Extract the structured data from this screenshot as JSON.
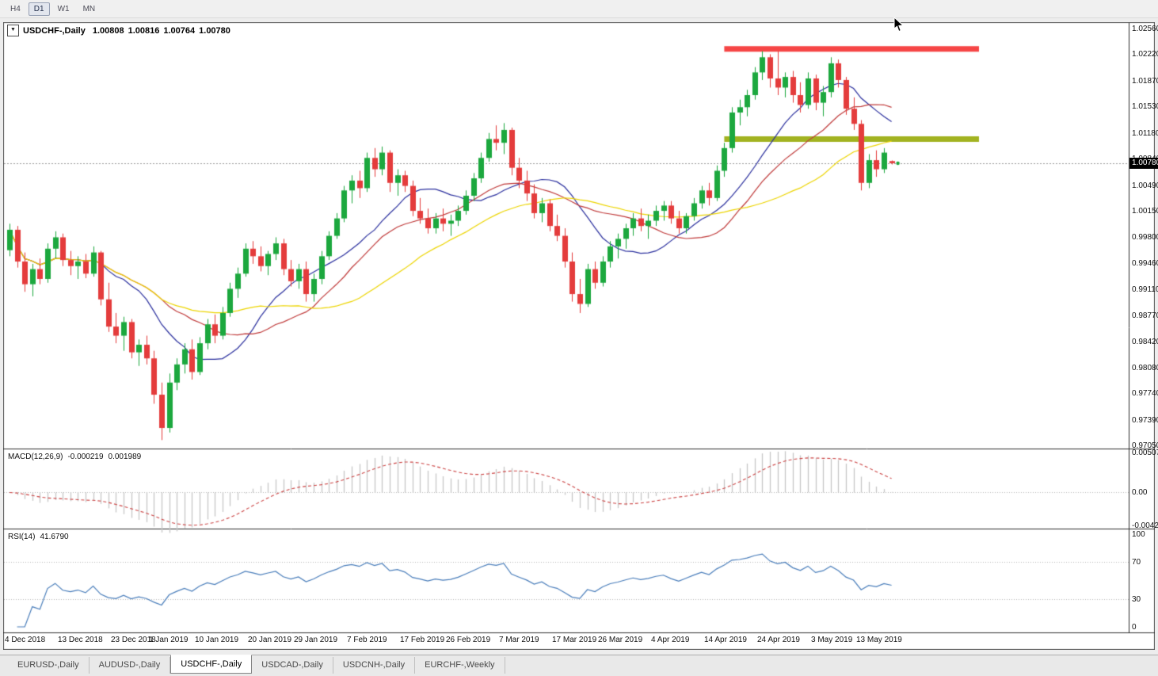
{
  "toolbar": {
    "timeframes": [
      {
        "label": "H4",
        "active": false
      },
      {
        "label": "D1",
        "active": true
      },
      {
        "label": "W1",
        "active": false
      },
      {
        "label": "MN",
        "active": false
      }
    ]
  },
  "icons": {
    "collapse": "▼"
  },
  "chart": {
    "symbol_label": "USDCHF-,Daily",
    "ohlc": {
      "open": "1.00808",
      "high": "1.00816",
      "low": "1.00764",
      "close": "1.00780"
    },
    "current_price": "1.00780",
    "price_scale": [
      "1.02560",
      "1.02220",
      "1.01870",
      "1.01530",
      "1.01180",
      "1.00840",
      "1.00490",
      "1.00150",
      "0.99800",
      "0.99460",
      "0.99110",
      "0.98770",
      "0.98420",
      "0.98080",
      "0.97740",
      "0.97390",
      "0.97050"
    ]
  },
  "indicators": {
    "macd": {
      "name": "MACD(12,26,9)",
      "value": "-0.000219",
      "signal_value": "0.001989",
      "scale": [
        "0.00507",
        "0.00",
        "-0.00424"
      ]
    },
    "rsi": {
      "name": "RSI(14)",
      "value": "41.6790",
      "scale": [
        "100",
        "70",
        "30",
        "0"
      ]
    }
  },
  "time_axis": {
    "labels": [
      {
        "text": "4 Dec 2018",
        "bar": 0
      },
      {
        "text": "13 Dec 2018",
        "bar": 7
      },
      {
        "text": "23 Dec 2018",
        "bar": 14
      },
      {
        "text": "1 Jan 2019",
        "bar": 19
      },
      {
        "text": "10 Jan 2019",
        "bar": 25
      },
      {
        "text": "20 Jan 2019",
        "bar": 32
      },
      {
        "text": "29 Jan 2019",
        "bar": 38
      },
      {
        "text": "7 Feb 2019",
        "bar": 45
      },
      {
        "text": "17 Feb 2019",
        "bar": 52
      },
      {
        "text": "26 Feb 2019",
        "bar": 58
      },
      {
        "text": "7 Mar 2019",
        "bar": 65
      },
      {
        "text": "17 Mar 2019",
        "bar": 72
      },
      {
        "text": "26 Mar 2019",
        "bar": 78
      },
      {
        "text": "4 Apr 2019",
        "bar": 85
      },
      {
        "text": "14 Apr 2019",
        "bar": 92
      },
      {
        "text": "24 Apr 2019",
        "bar": 99
      },
      {
        "text": "3 May 2019",
        "bar": 106
      },
      {
        "text": "13 May 2019",
        "bar": 112
      }
    ]
  },
  "tabs": [
    {
      "label": "EURUSD-,Daily",
      "active": false
    },
    {
      "label": "AUDUSD-,Daily",
      "active": false
    },
    {
      "label": "USDCHF-,Daily",
      "active": true
    },
    {
      "label": "USDCAD-,Daily",
      "active": false
    },
    {
      "label": "USDCNH-,Daily",
      "active": false
    },
    {
      "label": "EURCHF-,Weekly",
      "active": false
    }
  ],
  "chart_data": {
    "type": "candlestick",
    "symbol": "USDCHF-",
    "timeframe": "Daily",
    "title": "USDCHF-,Daily",
    "y_range": {
      "top": 1.02644,
      "bottom": 0.97008
    },
    "colors": {
      "up": "#1ca83e",
      "down": "#e43c3c"
    },
    "dates": [
      "2018-12-04",
      "2018-12-05",
      "2018-12-06",
      "2018-12-07",
      "2018-12-10",
      "2018-12-11",
      "2018-12-12",
      "2018-12-13",
      "2018-12-14",
      "2018-12-17",
      "2018-12-18",
      "2018-12-19",
      "2018-12-20",
      "2018-12-21",
      "2018-12-24",
      "2018-12-26",
      "2018-12-27",
      "2018-12-28",
      "2018-12-31",
      "2019-01-02",
      "2019-01-03",
      "2019-01-04",
      "2019-01-07",
      "2019-01-08",
      "2019-01-09",
      "2019-01-10",
      "2019-01-11",
      "2019-01-14",
      "2019-01-15",
      "2019-01-16",
      "2019-01-17",
      "2019-01-18",
      "2019-01-21",
      "2019-01-22",
      "2019-01-23",
      "2019-01-24",
      "2019-01-25",
      "2019-01-28",
      "2019-01-29",
      "2019-01-30",
      "2019-01-31",
      "2019-02-01",
      "2019-02-04",
      "2019-02-05",
      "2019-02-06",
      "2019-02-07",
      "2019-02-08",
      "2019-02-11",
      "2019-02-12",
      "2019-02-13",
      "2019-02-14",
      "2019-02-15",
      "2019-02-18",
      "2019-02-19",
      "2019-02-20",
      "2019-02-21",
      "2019-02-22",
      "2019-02-25",
      "2019-02-26",
      "2019-02-27",
      "2019-02-28",
      "2019-03-01",
      "2019-03-04",
      "2019-03-05",
      "2019-03-06",
      "2019-03-07",
      "2019-03-08",
      "2019-03-11",
      "2019-03-12",
      "2019-03-13",
      "2019-03-14",
      "2019-03-15",
      "2019-03-18",
      "2019-03-19",
      "2019-03-20",
      "2019-03-21",
      "2019-03-22",
      "2019-03-25",
      "2019-03-26",
      "2019-03-27",
      "2019-03-28",
      "2019-03-29",
      "2019-04-01",
      "2019-04-02",
      "2019-04-03",
      "2019-04-04",
      "2019-04-05",
      "2019-04-08",
      "2019-04-09",
      "2019-04-10",
      "2019-04-11",
      "2019-04-12",
      "2019-04-15",
      "2019-04-16",
      "2019-04-17",
      "2019-04-18",
      "2019-04-19",
      "2019-04-22",
      "2019-04-23",
      "2019-04-24",
      "2019-04-25",
      "2019-04-26",
      "2019-04-29",
      "2019-04-30",
      "2019-05-01",
      "2019-05-02",
      "2019-05-03",
      "2019-05-06",
      "2019-05-07",
      "2019-05-08",
      "2019-05-09",
      "2019-05-10",
      "2019-05-13",
      "2019-05-14",
      "2019-05-15",
      "2019-05-16",
      "2019-05-17"
    ],
    "ohlc": [
      [
        0.9963,
        0.9998,
        0.9955,
        0.999
      ],
      [
        0.999,
        0.9995,
        0.994,
        0.9948
      ],
      [
        0.9948,
        0.996,
        0.9908,
        0.9918
      ],
      [
        0.9918,
        0.9945,
        0.9902,
        0.9938
      ],
      [
        0.9938,
        0.9952,
        0.9918,
        0.9925
      ],
      [
        0.9925,
        0.9972,
        0.992,
        0.9965
      ],
      [
        0.9965,
        0.9988,
        0.9952,
        0.998
      ],
      [
        0.998,
        0.9985,
        0.9942,
        0.995
      ],
      [
        0.995,
        0.9962,
        0.993,
        0.9942
      ],
      [
        0.9942,
        0.9955,
        0.9925,
        0.9948
      ],
      [
        0.9948,
        0.9958,
        0.9926,
        0.9932
      ],
      [
        0.9932,
        0.9968,
        0.9928,
        0.996
      ],
      [
        0.996,
        0.9962,
        0.989,
        0.9898
      ],
      [
        0.9898,
        0.992,
        0.9855,
        0.9862
      ],
      [
        0.9862,
        0.988,
        0.984,
        0.985
      ],
      [
        0.985,
        0.9875,
        0.983,
        0.9868
      ],
      [
        0.9868,
        0.9872,
        0.982,
        0.9828
      ],
      [
        0.9828,
        0.9845,
        0.981,
        0.9838
      ],
      [
        0.9838,
        0.985,
        0.9812,
        0.982
      ],
      [
        0.982,
        0.983,
        0.976,
        0.9772
      ],
      [
        0.9772,
        0.9788,
        0.9712,
        0.9728
      ],
      [
        0.9728,
        0.98,
        0.9722,
        0.9788
      ],
      [
        0.9788,
        0.982,
        0.9778,
        0.9812
      ],
      [
        0.9812,
        0.984,
        0.98,
        0.9832
      ],
      [
        0.9832,
        0.9845,
        0.9792,
        0.9802
      ],
      [
        0.9802,
        0.9848,
        0.9798,
        0.984
      ],
      [
        0.984,
        0.9872,
        0.9832,
        0.9865
      ],
      [
        0.9865,
        0.9878,
        0.984,
        0.985
      ],
      [
        0.985,
        0.9888,
        0.9845,
        0.988
      ],
      [
        0.988,
        0.992,
        0.9875,
        0.9912
      ],
      [
        0.9912,
        0.994,
        0.99,
        0.9932
      ],
      [
        0.9932,
        0.9972,
        0.9928,
        0.9965
      ],
      [
        0.9965,
        0.9975,
        0.9945,
        0.9955
      ],
      [
        0.9955,
        0.9968,
        0.9935,
        0.9942
      ],
      [
        0.9942,
        0.9962,
        0.993,
        0.9958
      ],
      [
        0.9958,
        0.998,
        0.995,
        0.9972
      ],
      [
        0.9972,
        0.9978,
        0.993,
        0.9938
      ],
      [
        0.9938,
        0.995,
        0.9915,
        0.9922
      ],
      [
        0.9922,
        0.9945,
        0.9912,
        0.9938
      ],
      [
        0.9938,
        0.9948,
        0.9895,
        0.9905
      ],
      [
        0.9905,
        0.9932,
        0.9895,
        0.9925
      ],
      [
        0.9925,
        0.9962,
        0.9918,
        0.9955
      ],
      [
        0.9955,
        0.9988,
        0.995,
        0.9982
      ],
      [
        0.9982,
        1.0012,
        0.9978,
        1.0005
      ],
      [
        1.0005,
        1.0048,
        1.0,
        1.0042
      ],
      [
        1.0042,
        1.0062,
        1.0025,
        1.0055
      ],
      [
        1.0055,
        1.0068,
        1.0032,
        1.0045
      ],
      [
        1.0045,
        1.0092,
        1.004,
        1.0085
      ],
      [
        1.0085,
        1.0098,
        1.006,
        1.007
      ],
      [
        1.007,
        1.01,
        1.0062,
        1.0092
      ],
      [
        1.0092,
        1.0095,
        1.004,
        1.0052
      ],
      [
        1.0052,
        1.007,
        1.0035,
        1.0062
      ],
      [
        1.0062,
        1.0068,
        1.004,
        1.0048
      ],
      [
        1.0048,
        1.0055,
        1.0008,
        1.0015
      ],
      [
        1.0015,
        1.0032,
        0.9998,
        1.0005
      ],
      [
        1.0005,
        1.0018,
        0.9985,
        0.9992
      ],
      [
        0.9992,
        1.0012,
        0.9985,
        1.0005
      ],
      [
        1.0005,
        1.0018,
        0.9988,
        0.9998
      ],
      [
        0.9998,
        1.001,
        0.9982,
        1.0002
      ],
      [
        1.0002,
        1.0022,
        0.9995,
        1.0015
      ],
      [
        1.0015,
        1.0042,
        1.001,
        1.0035
      ],
      [
        1.0035,
        1.0065,
        1.0028,
        1.0058
      ],
      [
        1.0058,
        1.0092,
        1.0052,
        1.0085
      ],
      [
        1.0085,
        1.0118,
        1.008,
        1.011
      ],
      [
        1.011,
        1.0128,
        1.0095,
        1.0105
      ],
      [
        1.0105,
        1.0131,
        1.009,
        1.0122
      ],
      [
        1.0122,
        1.0125,
        1.0062,
        1.0072
      ],
      [
        1.0072,
        1.0085,
        1.0045,
        1.0055
      ],
      [
        1.0055,
        1.0068,
        1.0028,
        1.0038
      ],
      [
        1.0038,
        1.005,
        1.0005,
        1.0012
      ],
      [
        1.0012,
        1.0032,
        1.0,
        1.0025
      ],
      [
        1.0025,
        1.003,
        0.9988,
        0.9995
      ],
      [
        0.9995,
        1.001,
        0.9975,
        0.9982
      ],
      [
        0.9982,
        0.9992,
        0.994,
        0.9948
      ],
      [
        0.9948,
        0.996,
        0.9895,
        0.9905
      ],
      [
        0.9905,
        0.9925,
        0.988,
        0.9892
      ],
      [
        0.9892,
        0.9945,
        0.9888,
        0.9938
      ],
      [
        0.9938,
        0.9948,
        0.9912,
        0.992
      ],
      [
        0.992,
        0.9955,
        0.9915,
        0.9948
      ],
      [
        0.9948,
        0.9975,
        0.994,
        0.9968
      ],
      [
        0.9968,
        0.9985,
        0.9952,
        0.9978
      ],
      [
        0.9978,
        0.9998,
        0.9965,
        0.9992
      ],
      [
        0.9992,
        1.0012,
        0.9982,
        1.0005
      ],
      [
        1.0005,
        1.0018,
        0.9988,
        0.9995
      ],
      [
        0.9995,
        1.001,
        0.9978,
        1.0002
      ],
      [
        1.0002,
        1.0022,
        0.9995,
        1.0015
      ],
      [
        1.0015,
        1.0028,
        1.0002,
        1.0022
      ],
      [
        1.0022,
        1.0028,
        0.9998,
        1.0005
      ],
      [
        1.0005,
        1.0015,
        0.9985,
        0.9992
      ],
      [
        0.9992,
        1.0012,
        0.9985,
        1.0008
      ],
      [
        1.0008,
        1.0032,
        1.0002,
        1.0025
      ],
      [
        1.0025,
        1.0048,
        1.0018,
        1.0042
      ],
      [
        1.0042,
        1.0052,
        1.0022,
        1.0032
      ],
      [
        1.0032,
        1.0075,
        1.0028,
        1.0068
      ],
      [
        1.0068,
        1.0105,
        1.006,
        1.0098
      ],
      [
        1.0098,
        1.0152,
        1.0092,
        1.0145
      ],
      [
        1.0145,
        1.0162,
        1.0128,
        1.0152
      ],
      [
        1.0152,
        1.0175,
        1.014,
        1.0168
      ],
      [
        1.0168,
        1.0205,
        1.0162,
        1.0198
      ],
      [
        1.0198,
        1.0226,
        1.0188,
        1.0218
      ],
      [
        1.0218,
        1.0222,
        1.0178,
        1.019
      ],
      [
        1.019,
        1.0226,
        1.0168,
        1.0178
      ],
      [
        1.0178,
        1.0198,
        1.0165,
        1.0192
      ],
      [
        1.0192,
        1.02,
        1.0158,
        1.0168
      ],
      [
        1.0168,
        1.0185,
        1.0145,
        1.0155
      ],
      [
        1.0155,
        1.0198,
        1.015,
        1.019
      ],
      [
        1.019,
        1.0195,
        1.0148,
        1.0158
      ],
      [
        1.0158,
        1.018,
        1.014,
        1.0172
      ],
      [
        1.0172,
        1.0218,
        1.0165,
        1.021
      ],
      [
        1.021,
        1.0215,
        1.0178,
        1.0188
      ],
      [
        1.0188,
        1.0192,
        1.0142,
        1.015
      ],
      [
        1.015,
        1.0165,
        1.0122,
        1.013
      ],
      [
        1.013,
        1.0135,
        1.0042,
        1.0052
      ],
      [
        1.0052,
        1.009,
        1.0045,
        1.0082
      ],
      [
        1.0082,
        1.0095,
        1.006,
        1.007
      ],
      [
        1.007,
        1.0098,
        1.0065,
        1.0092
      ],
      [
        1.00808,
        1.00816,
        1.00764,
        1.0078
      ]
    ],
    "overlays": {
      "moving_averages": [
        {
          "period": 13,
          "color": "#2a2f9e"
        },
        {
          "period": 21,
          "color": "#c03a3a"
        },
        {
          "period": 34,
          "color": "#edd500"
        }
      ]
    },
    "objects": [
      {
        "type": "hline_segment",
        "role": "resistance",
        "price": 1.0229,
        "bar_start": 94,
        "bar_end": 127.5,
        "color": "#f64545",
        "width": 7
      },
      {
        "type": "hline_segment",
        "role": "support",
        "price": 1.011,
        "bar_start": 94,
        "bar_end": 127.5,
        "color": "#a2b321",
        "width": 7
      }
    ],
    "sub_charts": [
      {
        "type": "macd_histogram",
        "name": "MACD",
        "params": [
          12,
          26,
          9
        ],
        "range": [
          -0.0046,
          0.0056
        ],
        "histogram_color": "#c6c6c6",
        "signal_color": "#cc4343",
        "last_value": -0.000219,
        "last_signal": 0.001989
      },
      {
        "type": "rsi_line",
        "name": "RSI",
        "params": [
          14
        ],
        "range": [
          0,
          100
        ],
        "levels": [
          70,
          30
        ],
        "line_color": "#4a7ebb",
        "last_value": 41.679
      }
    ]
  }
}
